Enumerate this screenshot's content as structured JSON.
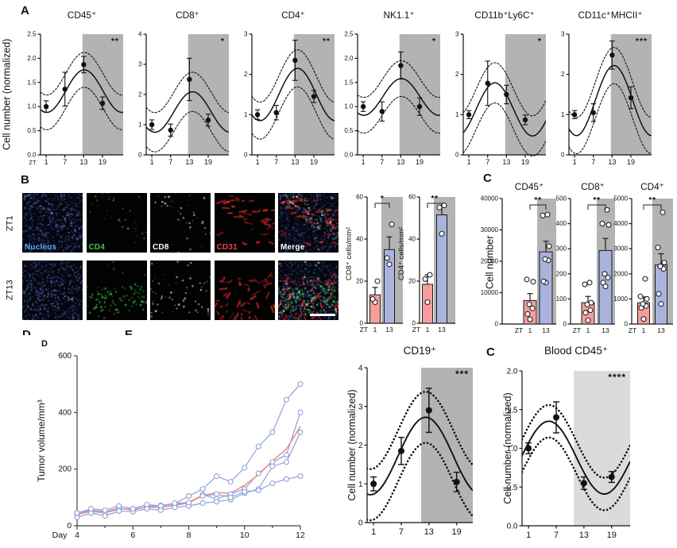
{
  "colors": {
    "shade_dark": "#b3b3b3",
    "shade_light": "#dbdbdb",
    "bar_pink": "#f59e9c",
    "bar_blue": "#a9b3de",
    "line_blue": "#8fa0d8",
    "line_red": "#f08a89",
    "axis": "#111111"
  },
  "figure": {
    "panel_a": {
      "label": "A",
      "ylabel": "Cell number (normalized)"
    },
    "panel_b": {
      "label": "B",
      "row_labels": [
        "ZT1",
        "ZT13"
      ],
      "channels": [
        {
          "label": "Nucleus",
          "color": "#58aef5"
        },
        {
          "label": "CD4",
          "color": "#41c24f"
        },
        {
          "label": "CD8",
          "color": "#ffffff"
        },
        {
          "label": "CD31",
          "color": "#e64545"
        },
        {
          "label": "Merge",
          "color": "#ffffff"
        }
      ]
    },
    "panel_c": {
      "label": "C",
      "ylabel": "Cell number"
    },
    "panel_d": {
      "label_clipped": "D",
      "label_clipped2": "E",
      "label": "D"
    },
    "panel_c2": {
      "label": "C"
    }
  },
  "chart_data": [
    {
      "id": "a1",
      "type": "line-cosinor",
      "title": "CD45⁺",
      "sig": "**",
      "ylim": [
        0,
        2.5
      ],
      "yticks": [
        "0.0",
        "0.5",
        "1.0",
        "1.5",
        "2.0",
        "2.5"
      ],
      "x": [
        1,
        7,
        13,
        19
      ],
      "x_prefix": "ZT",
      "values": [
        1.0,
        1.36,
        1.87,
        1.07
      ],
      "errors": [
        0.12,
        0.35,
        0.17,
        0.13
      ],
      "fit": {
        "mesor": 1.32,
        "amplitude": 0.44,
        "acrophase": 13.2,
        "band": 0.36
      },
      "shade_from": 12.6
    },
    {
      "id": "a2",
      "type": "line-cosinor",
      "title": "CD8⁺",
      "sig": "*",
      "ylim": [
        0,
        4
      ],
      "yticks": [
        "0",
        "1",
        "2",
        "3",
        "4"
      ],
      "x": [
        1,
        7,
        13,
        19
      ],
      "values": [
        1.0,
        0.82,
        2.5,
        1.15
      ],
      "errors": [
        0.16,
        0.2,
        0.7,
        0.2
      ],
      "fit": {
        "mesor": 1.42,
        "amplitude": 0.67,
        "acrophase": 14.0,
        "band": 0.65
      },
      "shade_from": 12.6
    },
    {
      "id": "a3",
      "type": "line-cosinor",
      "title": "CD4⁺",
      "sig": "**",
      "ylim": [
        0,
        3
      ],
      "yticks": [
        "0",
        "1",
        "2",
        "3"
      ],
      "x": [
        1,
        7,
        13,
        19
      ],
      "values": [
        1.0,
        1.05,
        2.35,
        1.45
      ],
      "errors": [
        0.12,
        0.18,
        0.5,
        0.15
      ],
      "fit": {
        "mesor": 1.5,
        "amplitude": 0.65,
        "acrophase": 13.8,
        "band": 0.46
      },
      "shade_from": 12.6
    },
    {
      "id": "a4",
      "type": "line-cosinor",
      "title": "NK1.1⁺",
      "sig": "*",
      "ylim": [
        0,
        2.5
      ],
      "yticks": [
        "0.0",
        "0.5",
        "1.0",
        "1.5",
        "2.0",
        "2.5"
      ],
      "x": [
        1,
        7,
        13,
        19
      ],
      "values": [
        1.0,
        0.9,
        1.85,
        1.0
      ],
      "errors": [
        0.1,
        0.2,
        0.28,
        0.18
      ],
      "fit": {
        "mesor": 1.2,
        "amplitude": 0.38,
        "acrophase": 13.2,
        "band": 0.37
      },
      "shade_from": 12.6
    },
    {
      "id": "a5",
      "type": "line-cosinor",
      "title": "CD11b⁺Ly6C⁺",
      "sig": "*",
      "ylim": [
        0,
        3
      ],
      "yticks": [
        "0",
        "1",
        "2",
        "3"
      ],
      "x": [
        1,
        7,
        13,
        19
      ],
      "values": [
        1.0,
        1.78,
        1.5,
        0.87
      ],
      "errors": [
        0.1,
        0.55,
        0.23,
        0.12
      ],
      "fit": {
        "mesor": 1.13,
        "amplitude": 0.66,
        "acrophase": 9.3,
        "band": 0.5
      },
      "shade_from": 12.6
    },
    {
      "id": "a6",
      "type": "line-cosinor",
      "title": "CD11c⁺MHCII⁺",
      "sig": "***",
      "ylim": [
        0,
        3
      ],
      "yticks": [
        "0",
        "1",
        "2",
        "3"
      ],
      "x": [
        1,
        7,
        13,
        19
      ],
      "values": [
        1.0,
        1.05,
        2.48,
        1.42
      ],
      "errors": [
        0.1,
        0.22,
        0.35,
        0.27
      ],
      "fit": {
        "mesor": 1.35,
        "amplitude": 0.87,
        "acrophase": 13.6,
        "band": 0.45
      },
      "shade_from": 12.6
    },
    {
      "id": "b1",
      "type": "bar",
      "ylabel": "CD8⁺  cells/mm²",
      "sig": "*",
      "ylim": [
        0,
        60
      ],
      "yticks": [
        "0",
        "20",
        "40",
        "60"
      ],
      "categories": [
        "1",
        "13"
      ],
      "cat_prefix": "ZT",
      "means": [
        13.5,
        35
      ],
      "errors": [
        3.5,
        6
      ],
      "points": [
        [
          10,
          11.5,
          20
        ],
        [
          28,
          31,
          47
        ]
      ]
    },
    {
      "id": "b2",
      "type": "bar",
      "ylabel": "CD4⁺  cells/mm²",
      "sig": "**",
      "ylim": [
        0,
        60
      ],
      "yticks": [
        "0",
        "20",
        "40",
        "60"
      ],
      "categories": [
        "1",
        "13"
      ],
      "cat_prefix": "ZT",
      "means": [
        18.5,
        51.5
      ],
      "errors": [
        4.5,
        4.5
      ],
      "points": [
        [
          10,
          21,
          23
        ],
        [
          42.5,
          55,
          56
        ]
      ]
    },
    {
      "id": "c1",
      "type": "bar",
      "title": "CD45⁺",
      "sig": "**",
      "ylim": [
        0,
        40000
      ],
      "yticks": [
        "0",
        "10000",
        "20000",
        "30000",
        "40000"
      ],
      "categories": [
        "1",
        "13"
      ],
      "cat_prefix": "ZT",
      "means": [
        7500,
        23000
      ],
      "errors": [
        2200,
        3400
      ],
      "points": [
        [
          1500,
          3200,
          5000,
          6300,
          13500,
          14200
        ],
        [
          13200,
          13600,
          20300,
          20700,
          24800,
          34600,
          34900
        ]
      ]
    },
    {
      "id": "c2",
      "type": "bar",
      "title": "CD8⁺",
      "sig": "**",
      "ylim": [
        0,
        500
      ],
      "yticks": [
        "0",
        "100",
        "200",
        "300",
        "400",
        "500"
      ],
      "categories": [
        "1",
        "13"
      ],
      "cat_prefix": "ZT",
      "means": [
        85,
        293
      ],
      "errors": [
        25,
        48
      ],
      "points": [
        [
          15,
          45,
          55,
          78,
          85,
          158,
          165
        ],
        [
          150,
          165,
          185,
          200,
          395,
          400,
          455
        ]
      ]
    },
    {
      "id": "c3",
      "type": "bar",
      "title": "CD4⁺",
      "sig": "**",
      "ylim": [
        0,
        5000
      ],
      "yticks": [
        "0",
        "1000",
        "2000",
        "3000",
        "4000",
        "5000"
      ],
      "categories": [
        "1",
        "13"
      ],
      "cat_prefix": "ZT",
      "means": [
        850,
        2350
      ],
      "errors": [
        230,
        450
      ],
      "points": [
        [
          200,
          650,
          720,
          800,
          1000,
          1100,
          1800
        ],
        [
          800,
          1200,
          2200,
          2300,
          2450,
          3050,
          4450
        ]
      ]
    },
    {
      "id": "d",
      "type": "line",
      "ylabel": "Tumor volume/mm³",
      "xlabel": "Day",
      "ylim": [
        0,
        600
      ],
      "yticks": [
        0,
        200,
        400,
        600
      ],
      "xticks": [
        4,
        6,
        8,
        10,
        12
      ],
      "xminor": [
        5,
        7,
        9,
        11
      ],
      "x": [
        4,
        4.5,
        5,
        5.5,
        6,
        6.5,
        7,
        7.5,
        8,
        8.5,
        9,
        9.5,
        10,
        10.5,
        11,
        11.5,
        12
      ],
      "series": [
        [
          45,
          55,
          50,
          62,
          55,
          68,
          72,
          78,
          105,
          130,
          175,
          155,
          205,
          280,
          330,
          445,
          500
        ],
        [
          40,
          50,
          45,
          58,
          60,
          65,
          65,
          72,
          80,
          110,
          95,
          112,
          130,
          185,
          225,
          250,
          400
        ],
        [
          30,
          45,
          35,
          52,
          50,
          60,
          55,
          65,
          70,
          80,
          85,
          92,
          115,
          130,
          210,
          225,
          330
        ],
        [
          45,
          60,
          55,
          70,
          60,
          75,
          70,
          80,
          82,
          105,
          112,
          100,
          120,
          125,
          150,
          165,
          175
        ]
      ],
      "mean_series": [
        40,
        53,
        46,
        61,
        56,
        67,
        66,
        74,
        84,
        106,
        117,
        115,
        143,
        180,
        229,
        271,
        350
      ]
    },
    {
      "id": "e",
      "type": "line-cosinor",
      "title": "CD19⁺",
      "ylabel": "Cell number (normalized)",
      "sig": "***",
      "ylim": [
        0,
        4
      ],
      "yticks": [
        "0",
        "1",
        "2",
        "3",
        "4"
      ],
      "x": [
        1,
        7,
        13,
        19
      ],
      "values": [
        1.0,
        1.85,
        2.9,
        1.05
      ],
      "errors": [
        0.18,
        0.35,
        0.57,
        0.25
      ],
      "fit": {
        "mesor": 1.72,
        "amplitude": 1.0,
        "acrophase": 12.3,
        "band": 0.66
      },
      "shade_from": 11.3,
      "dot_style": "heavy"
    },
    {
      "id": "c2b",
      "type": "line-cosinor",
      "title": "Blood CD45⁺",
      "ylabel": "Cell number (normalized)",
      "sig": "****",
      "ylim": [
        0,
        2
      ],
      "yticks": [
        "0.0",
        "0.5",
        "1.0",
        "1.5",
        "2.0"
      ],
      "x": [
        1,
        7,
        13,
        19
      ],
      "values": [
        1.0,
        1.4,
        0.55,
        0.63
      ],
      "errors": [
        0.07,
        0.2,
        0.08,
        0.07
      ],
      "fit": {
        "mesor": 0.88,
        "amplitude": 0.47,
        "acrophase": 5.4,
        "band": 0.21
      },
      "shade_from": 10.8,
      "shade": "light",
      "dot_style": "heavy"
    }
  ]
}
